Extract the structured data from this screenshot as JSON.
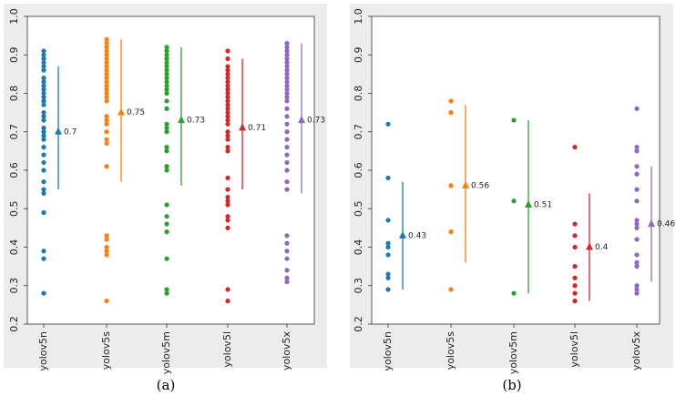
{
  "captions": [
    "(a)",
    "(b)"
  ],
  "chart_data": [
    {
      "type": "scatter",
      "caption": "(a)",
      "ylim": [
        0.2,
        1.0
      ],
      "yticks": [
        "0.2",
        "0.3",
        "0.4",
        "0.5",
        "0.6",
        "0.7",
        "0.8",
        "0.9",
        "1.0"
      ],
      "grid": false,
      "categories": [
        "yolov5n",
        "yolov5s",
        "yolov5m",
        "yolov5l",
        "yolov5x"
      ],
      "series": [
        {
          "color": "#1f77b4",
          "mean": 0.7,
          "mean_label": "0.7",
          "err": [
            0.55,
            0.87
          ],
          "points": [
            0.28,
            0.37,
            0.39,
            0.49,
            0.54,
            0.55,
            0.57,
            0.6,
            0.62,
            0.64,
            0.66,
            0.68,
            0.69,
            0.7,
            0.71,
            0.73,
            0.74,
            0.75,
            0.77,
            0.78,
            0.79,
            0.8,
            0.81,
            0.82,
            0.83,
            0.84,
            0.86,
            0.87,
            0.88,
            0.89,
            0.9,
            0.91
          ]
        },
        {
          "color": "#ff7f0e",
          "mean": 0.75,
          "mean_label": "0.75",
          "err": [
            0.57,
            0.94
          ],
          "points": [
            0.26,
            0.38,
            0.39,
            0.4,
            0.42,
            0.43,
            0.61,
            0.67,
            0.68,
            0.7,
            0.72,
            0.73,
            0.74,
            0.78,
            0.79,
            0.8,
            0.81,
            0.82,
            0.83,
            0.84,
            0.85,
            0.86,
            0.87,
            0.88,
            0.89,
            0.9,
            0.91,
            0.92,
            0.93,
            0.94
          ]
        },
        {
          "color": "#2ca02c",
          "mean": 0.73,
          "mean_label": "0.73",
          "err": [
            0.56,
            0.92
          ],
          "points": [
            0.28,
            0.29,
            0.37,
            0.44,
            0.46,
            0.48,
            0.51,
            0.6,
            0.61,
            0.65,
            0.66,
            0.7,
            0.71,
            0.72,
            0.76,
            0.78,
            0.8,
            0.81,
            0.82,
            0.83,
            0.84,
            0.85,
            0.86,
            0.87,
            0.88,
            0.89,
            0.9,
            0.91,
            0.92
          ]
        },
        {
          "color": "#d62728",
          "mean": 0.71,
          "mean_label": "0.71",
          "err": [
            0.55,
            0.89
          ],
          "points": [
            0.26,
            0.29,
            0.45,
            0.47,
            0.48,
            0.51,
            0.52,
            0.53,
            0.55,
            0.58,
            0.65,
            0.66,
            0.68,
            0.69,
            0.7,
            0.72,
            0.73,
            0.74,
            0.75,
            0.76,
            0.77,
            0.78,
            0.79,
            0.8,
            0.81,
            0.82,
            0.83,
            0.84,
            0.85,
            0.86,
            0.87,
            0.89,
            0.91
          ]
        },
        {
          "color": "#9467bd",
          "mean": 0.73,
          "mean_label": "0.73",
          "err": [
            0.54,
            0.93
          ],
          "points": [
            0.31,
            0.32,
            0.34,
            0.37,
            0.39,
            0.41,
            0.43,
            0.55,
            0.57,
            0.6,
            0.62,
            0.64,
            0.66,
            0.68,
            0.7,
            0.72,
            0.74,
            0.76,
            0.78,
            0.79,
            0.8,
            0.81,
            0.82,
            0.83,
            0.84,
            0.85,
            0.86,
            0.87,
            0.88,
            0.89,
            0.9,
            0.91,
            0.92,
            0.93
          ]
        }
      ]
    },
    {
      "type": "scatter",
      "caption": "(b)",
      "ylim": [
        0.2,
        1.0
      ],
      "yticks": [
        "0.2",
        "0.3",
        "0.4",
        "0.5",
        "0.6",
        "0.7",
        "0.8",
        "0.9",
        "1.0"
      ],
      "grid": false,
      "categories": [
        "yolov5n",
        "yolov5s",
        "yolov5m",
        "yolov5l",
        "yolov5x"
      ],
      "series": [
        {
          "color": "#1f77b4",
          "mean": 0.43,
          "mean_label": "0.43",
          "err": [
            0.29,
            0.57
          ],
          "points": [
            0.29,
            0.32,
            0.33,
            0.38,
            0.4,
            0.41,
            0.47,
            0.58,
            0.72
          ]
        },
        {
          "color": "#ff7f0e",
          "mean": 0.56,
          "mean_label": "0.56",
          "err": [
            0.36,
            0.77
          ],
          "points": [
            0.29,
            0.44,
            0.56,
            0.75,
            0.78
          ]
        },
        {
          "color": "#2ca02c",
          "mean": 0.51,
          "mean_label": "0.51",
          "err": [
            0.28,
            0.73
          ],
          "points": [
            0.28,
            0.52,
            0.73
          ]
        },
        {
          "color": "#d62728",
          "mean": 0.4,
          "mean_label": "0.4",
          "err": [
            0.26,
            0.54
          ],
          "points": [
            0.26,
            0.28,
            0.3,
            0.32,
            0.35,
            0.4,
            0.43,
            0.46,
            0.66
          ]
        },
        {
          "color": "#9467bd",
          "mean": 0.46,
          "mean_label": "0.46",
          "err": [
            0.31,
            0.61
          ],
          "points": [
            0.28,
            0.29,
            0.3,
            0.35,
            0.36,
            0.38,
            0.42,
            0.45,
            0.46,
            0.47,
            0.52,
            0.55,
            0.59,
            0.61,
            0.65,
            0.66,
            0.76
          ]
        }
      ]
    }
  ]
}
